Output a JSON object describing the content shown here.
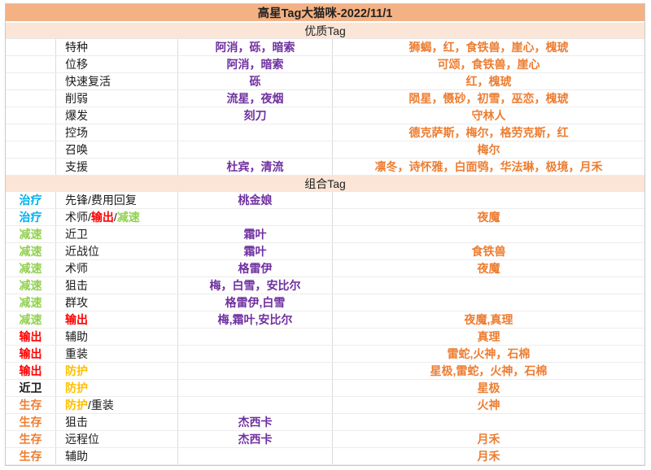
{
  "title": "高星Tag大猫咪-2022/11/1",
  "colors": {
    "title_bg": "#F4B183",
    "section_bg": "#FBE5D6",
    "purple": "#7030A0",
    "orange": "#ED7D31",
    "blue": "#00B0F0",
    "green": "#92D050",
    "red": "#FF0000",
    "yellow": "#FFC000",
    "black": "#1a1a1a"
  },
  "sections": [
    {
      "header": "优质Tag",
      "rows": [
        {
          "tag": null,
          "label": [
            {
              "t": "特种",
              "c": "black"
            }
          ],
          "purple": "阿消，砾，暗索",
          "orange": "狮蝎，红，食铁兽，崖心，槐琥"
        },
        {
          "tag": null,
          "label": [
            {
              "t": "位移",
              "c": "black"
            }
          ],
          "purple": "阿消，暗索",
          "orange": "可颂，食铁兽，崖心"
        },
        {
          "tag": null,
          "label": [
            {
              "t": "快速复活",
              "c": "black"
            }
          ],
          "purple": "砾",
          "orange": "红，槐琥"
        },
        {
          "tag": null,
          "label": [
            {
              "t": "削弱",
              "c": "black"
            }
          ],
          "purple": "流星，夜烟",
          "orange": "陨星，慑砂，初雪，巫恋，槐琥"
        },
        {
          "tag": null,
          "label": [
            {
              "t": "爆发",
              "c": "black"
            }
          ],
          "purple": "刻刀",
          "orange": "守林人"
        },
        {
          "tag": null,
          "label": [
            {
              "t": "控场",
              "c": "black"
            }
          ],
          "purple": "",
          "orange": "德克萨斯，梅尔，格劳克斯，红"
        },
        {
          "tag": null,
          "label": [
            {
              "t": "召唤",
              "c": "black"
            }
          ],
          "purple": "",
          "orange": "梅尔"
        },
        {
          "tag": null,
          "label": [
            {
              "t": "支援",
              "c": "black"
            }
          ],
          "purple": "杜宾，清流",
          "orange": "凛冬，诗怀雅，白面鸮，华法琳，极境，月禾"
        }
      ]
    },
    {
      "header": "组合Tag",
      "rows": [
        {
          "tag": {
            "t": "治疗",
            "c": "blue"
          },
          "label": [
            {
              "t": "先锋/费用回复",
              "c": "black"
            }
          ],
          "purple": "桃金娘",
          "orange": ""
        },
        {
          "tag": {
            "t": "治疗",
            "c": "blue"
          },
          "label": [
            {
              "t": "术师/",
              "c": "black"
            },
            {
              "t": "输出",
              "c": "red"
            },
            {
              "t": "/",
              "c": "black"
            },
            {
              "t": "减速",
              "c": "green"
            }
          ],
          "purple": "",
          "orange": "夜魔"
        },
        {
          "tag": {
            "t": "减速",
            "c": "green"
          },
          "label": [
            {
              "t": "近卫",
              "c": "black"
            }
          ],
          "purple": "霜叶",
          "orange": ""
        },
        {
          "tag": {
            "t": "减速",
            "c": "green"
          },
          "label": [
            {
              "t": "近战位",
              "c": "black"
            }
          ],
          "purple": "霜叶",
          "orange": "食铁兽"
        },
        {
          "tag": {
            "t": "减速",
            "c": "green"
          },
          "label": [
            {
              "t": "术师",
              "c": "black"
            }
          ],
          "purple": "格雷伊",
          "orange": "夜魔"
        },
        {
          "tag": {
            "t": "减速",
            "c": "green"
          },
          "label": [
            {
              "t": "狙击",
              "c": "black"
            }
          ],
          "purple": "梅，白雪，安比尔",
          "orange": ""
        },
        {
          "tag": {
            "t": "减速",
            "c": "green"
          },
          "label": [
            {
              "t": "群攻",
              "c": "black"
            }
          ],
          "purple": "格雷伊,白雪",
          "orange": ""
        },
        {
          "tag": {
            "t": "减速",
            "c": "green"
          },
          "label": [
            {
              "t": "输出",
              "c": "red"
            }
          ],
          "purple": "梅,霜叶,安比尔",
          "orange": "夜魔,真理"
        },
        {
          "tag": {
            "t": "输出",
            "c": "red"
          },
          "label": [
            {
              "t": "辅助",
              "c": "black"
            }
          ],
          "purple": "",
          "orange": "真理"
        },
        {
          "tag": {
            "t": "输出",
            "c": "red"
          },
          "label": [
            {
              "t": "重装",
              "c": "black"
            }
          ],
          "purple": "",
          "orange": "雷蛇,火神，石棉"
        },
        {
          "tag": {
            "t": "输出",
            "c": "red"
          },
          "label": [
            {
              "t": "防护",
              "c": "yellow"
            }
          ],
          "purple": "",
          "orange": "星极,雷蛇，火神，石棉"
        },
        {
          "tag": {
            "t": "近卫",
            "c": "black"
          },
          "label": [
            {
              "t": "防护",
              "c": "yellow"
            }
          ],
          "purple": "",
          "orange": "星极"
        },
        {
          "tag": {
            "t": "生存",
            "c": "orange"
          },
          "label": [
            {
              "t": "防护",
              "c": "yellow"
            },
            {
              "t": "/重装",
              "c": "black"
            }
          ],
          "purple": "",
          "orange": "火神"
        },
        {
          "tag": {
            "t": "生存",
            "c": "orange"
          },
          "label": [
            {
              "t": "狙击",
              "c": "black"
            }
          ],
          "purple": "杰西卡",
          "orange": ""
        },
        {
          "tag": {
            "t": "生存",
            "c": "orange"
          },
          "label": [
            {
              "t": "远程位",
              "c": "black"
            }
          ],
          "purple": "杰西卡",
          "orange": "月禾"
        },
        {
          "tag": {
            "t": "生存",
            "c": "orange"
          },
          "label": [
            {
              "t": "辅助",
              "c": "black"
            }
          ],
          "purple": "",
          "orange": "月禾"
        }
      ]
    }
  ]
}
